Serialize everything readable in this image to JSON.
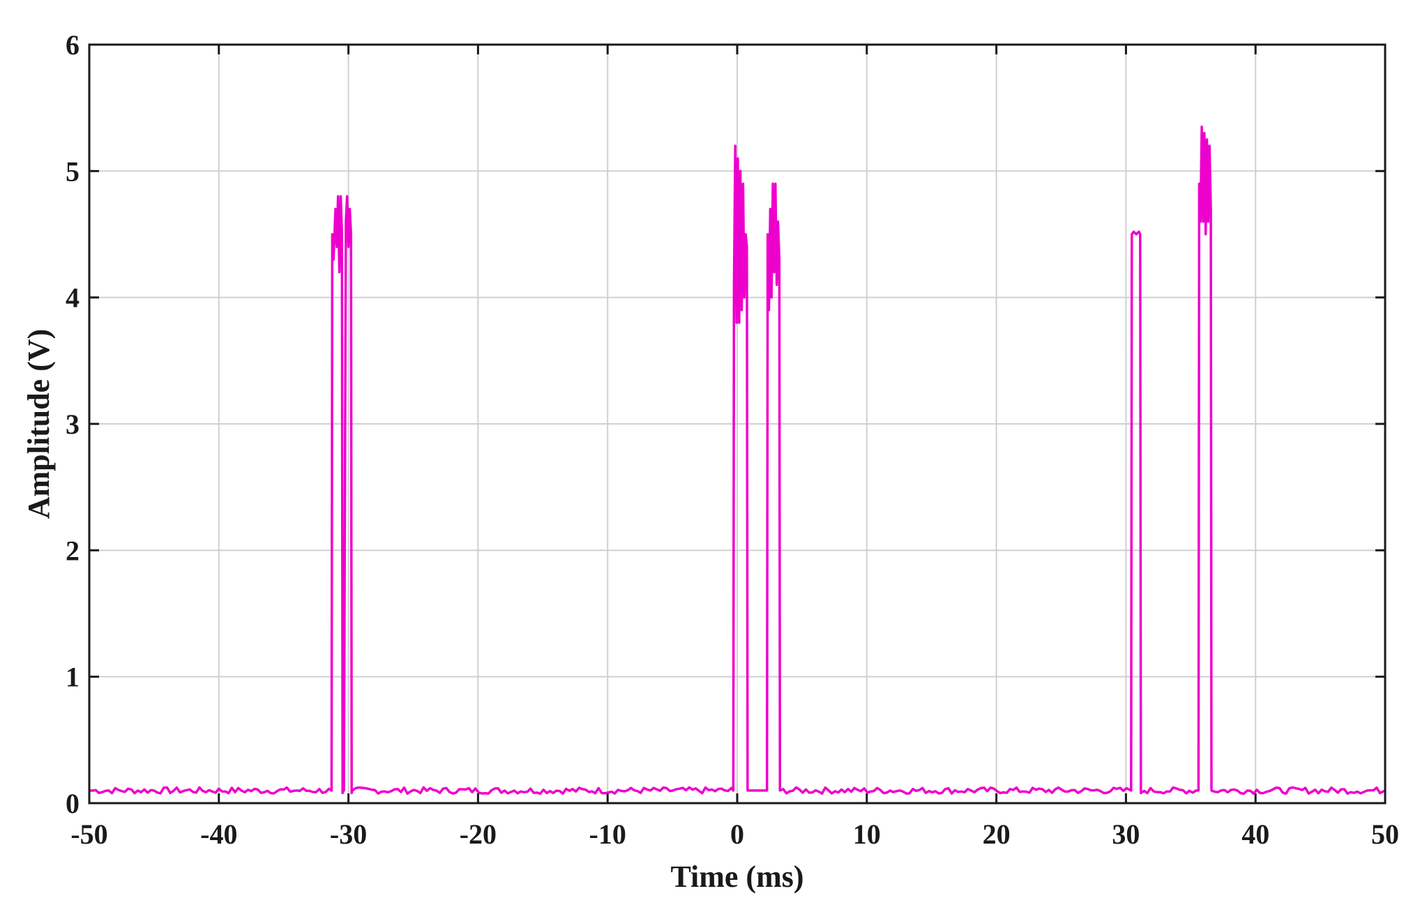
{
  "chart_data": {
    "type": "line",
    "title": "",
    "xlabel": "Time (ms)",
    "ylabel": "Amplitude (V)",
    "xlim": [
      -50,
      50
    ],
    "ylim": [
      0,
      6
    ],
    "xticks": [
      -50,
      -40,
      -30,
      -20,
      -10,
      0,
      10,
      20,
      30,
      40,
      50
    ],
    "xtick_labels": [
      "-50",
      "-40",
      "-30",
      "-20",
      "-10",
      "0",
      "10",
      "20",
      "30",
      "40",
      "50"
    ],
    "yticks": [
      0,
      1,
      2,
      3,
      4,
      5,
      6
    ],
    "ytick_labels": [
      "0",
      "1",
      "2",
      "3",
      "4",
      "5",
      "6"
    ],
    "grid": true,
    "legend": "none",
    "baseline": 0.1,
    "series": [
      {
        "color": "#ee00cc",
        "x": [
          -50,
          -31.3,
          -31.25,
          -31.15,
          -31.0,
          -30.9,
          -30.8,
          -30.7,
          -30.6,
          -30.5,
          -30.45,
          -30.4,
          -30.35,
          -30.2,
          -30.1,
          -30.0,
          -29.9,
          -29.8,
          -29.75,
          -29.7,
          -0.3,
          -0.25,
          -0.15,
          -0.05,
          0.05,
          0.15,
          0.25,
          0.35,
          0.45,
          0.55,
          0.65,
          0.75,
          0.8,
          2.3,
          2.35,
          2.45,
          2.55,
          2.65,
          2.75,
          2.85,
          2.95,
          3.05,
          3.15,
          3.25,
          3.3,
          30.4,
          30.45,
          30.6,
          30.8,
          31.0,
          31.1,
          31.15,
          35.6,
          35.65,
          35.75,
          35.85,
          35.95,
          36.05,
          36.15,
          36.25,
          36.35,
          36.45,
          36.55,
          36.6,
          50
        ],
        "y": [
          0.1,
          0.1,
          4.5,
          4.3,
          4.7,
          4.4,
          4.8,
          4.2,
          4.8,
          4.5,
          0.08,
          0.1,
          0.1,
          4.6,
          4.8,
          4.4,
          4.7,
          4.5,
          0.08,
          0.1,
          0.1,
          4.1,
          5.2,
          3.8,
          5.1,
          3.8,
          5.0,
          3.9,
          4.9,
          4.0,
          4.5,
          4.4,
          0.1,
          0.1,
          4.5,
          3.9,
          4.7,
          4.0,
          4.9,
          4.2,
          4.9,
          4.1,
          4.6,
          4.3,
          0.1,
          0.1,
          4.5,
          4.52,
          4.5,
          4.52,
          4.5,
          0.08,
          0.1,
          4.9,
          4.6,
          5.35,
          4.6,
          5.3,
          4.5,
          5.25,
          4.6,
          5.2,
          4.7,
          0.1,
          0.1
        ]
      }
    ]
  }
}
